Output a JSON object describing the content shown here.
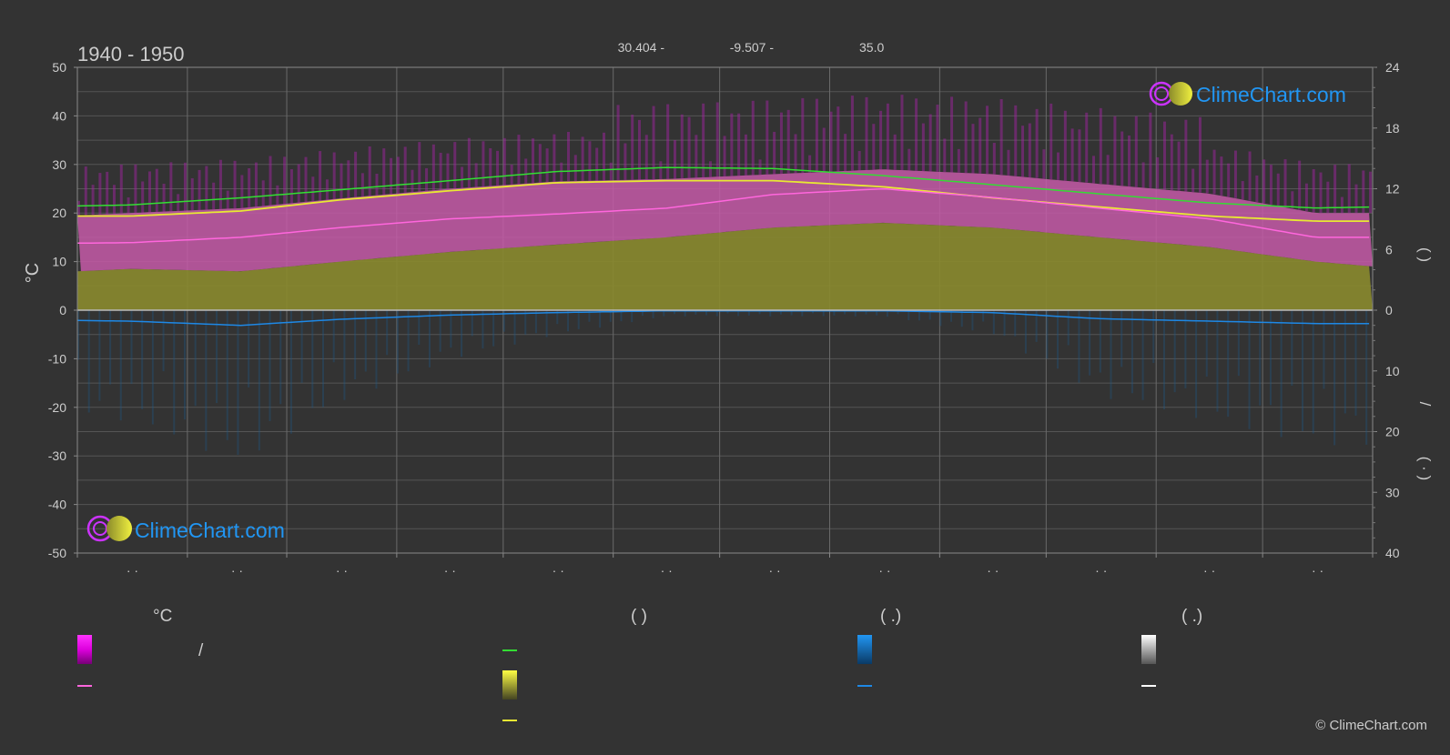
{
  "header": {
    "period": "1940 - 1950",
    "lat": "30.404 -",
    "lon": "-9.507 -",
    "elev": "35.0"
  },
  "axes": {
    "left_unit": "°C",
    "left_ticks": [
      "50",
      "40",
      "30",
      "20",
      "10",
      "0",
      "-10",
      "-20",
      "-30",
      "-40",
      "-50"
    ],
    "right_ticks_top": [
      "24",
      "18",
      "12",
      "6",
      "0"
    ],
    "right_ticks_bottom": [
      "10",
      "20",
      "30",
      "40"
    ],
    "right_label_top": "(          )",
    "right_label_slash": "/",
    "right_label_bottom": "( · )",
    "month_labels": [
      "· ·",
      "· ·",
      "· ·",
      "· ·",
      "· ·",
      "· ·",
      "· ·",
      "· ·",
      "· ·",
      "· ·",
      "· ·",
      "· ·"
    ]
  },
  "legend": {
    "col1_title": "°C",
    "col1_row1": "/",
    "col2_title": "(          )",
    "col3_title": "(   .)",
    "col4_title": "(   .)"
  },
  "branding": {
    "logo_text": "ClimeChart.com",
    "copyright": "© ClimeChart.com"
  },
  "colors": {
    "background": "#333333",
    "grid": "#5a5a5a",
    "daylight": "#33dd33",
    "sunshine": "#e8e833",
    "mean_temp": "#ff66dd",
    "max_temp_band": "#dd33cc",
    "sunshine_fill": "#8a8a30",
    "rain": "#1e88e5",
    "logo_blue": "#2196f3",
    "logo_magenta": "#cc33ff",
    "logo_yellow": "#d8d830"
  },
  "chart_data": {
    "type": "area",
    "title": "1940 - 1950",
    "months": 12,
    "x_domain": [
      0,
      365
    ],
    "left_axis": {
      "label": "°C",
      "ylim": [
        -50,
        50
      ]
    },
    "right_axis_top": {
      "ylim": [
        0,
        24
      ],
      "note": "hours"
    },
    "right_axis_bottom": {
      "ylim": [
        0,
        40
      ],
      "note": "mm, inverted"
    },
    "series": [
      {
        "key": "daylight",
        "unit": "hours",
        "x": [
          0,
          15,
          46,
          74,
          105,
          135,
          166,
          196,
          227,
          258,
          288,
          319,
          349,
          365
        ],
        "values": [
          10.3,
          10.4,
          11.1,
          11.9,
          12.8,
          13.7,
          14.1,
          14.0,
          13.3,
          12.4,
          11.5,
          10.6,
          10.1,
          10.2
        ]
      },
      {
        "key": "sunshine",
        "unit": "hours",
        "x": [
          0,
          15,
          46,
          74,
          105,
          135,
          166,
          196,
          227,
          258,
          288,
          319,
          349,
          365
        ],
        "values": [
          9.3,
          9.3,
          9.8,
          10.9,
          11.8,
          12.6,
          12.8,
          12.8,
          12.2,
          11.1,
          10.2,
          9.3,
          8.8,
          8.8
        ]
      },
      {
        "key": "mean_temp",
        "unit": "°C",
        "x": [
          0,
          15,
          46,
          74,
          105,
          135,
          166,
          196,
          227,
          258,
          288,
          319,
          349,
          365
        ],
        "values": [
          13.8,
          13.9,
          15.0,
          17.0,
          18.8,
          19.8,
          21.0,
          23.8,
          25.0,
          23.2,
          21.0,
          18.8,
          15.0,
          15.0
        ]
      },
      {
        "key": "max_temp_band_top",
        "unit": "°C",
        "x": [
          0,
          15,
          46,
          74,
          105,
          135,
          166,
          196,
          227,
          258,
          288,
          319,
          349,
          365
        ],
        "values": [
          19.5,
          20.0,
          21.0,
          23.0,
          25.0,
          26.5,
          27.0,
          28.0,
          29.0,
          28.0,
          26.0,
          24.0,
          20.0,
          20.0
        ]
      },
      {
        "key": "sunshine_fill_top",
        "unit": "°C",
        "x": [
          0,
          15,
          46,
          74,
          105,
          135,
          166,
          196,
          227,
          258,
          288,
          319,
          349,
          365
        ],
        "values": [
          8.0,
          8.5,
          8.0,
          10.0,
          12.0,
          13.5,
          15.0,
          17.0,
          18.0,
          17.0,
          15.0,
          13.0,
          10.0,
          9.0
        ]
      },
      {
        "key": "precipitation",
        "unit": "mm",
        "x": [
          0,
          15,
          46,
          74,
          105,
          135,
          166,
          196,
          227,
          258,
          288,
          319,
          349,
          365
        ],
        "values": [
          1.7,
          1.8,
          2.5,
          1.5,
          0.8,
          0.4,
          0.1,
          0.1,
          0.1,
          0.4,
          1.4,
          1.8,
          2.2,
          2.2
        ]
      }
    ]
  }
}
